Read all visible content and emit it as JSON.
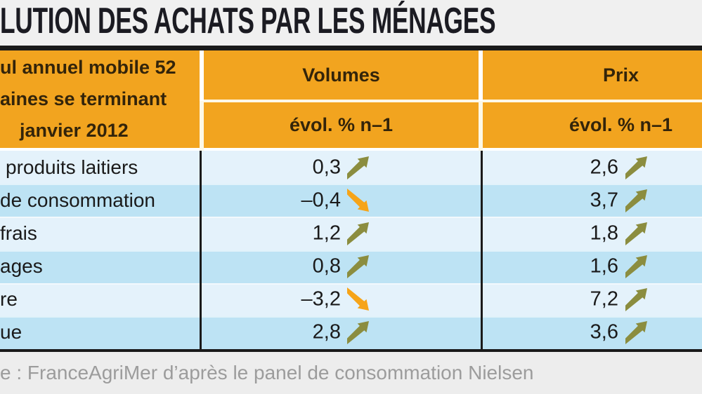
{
  "title": "LUTION DES ACHATS PAR LES MÉNAGES",
  "header": {
    "period_lines": [
      "ul annuel mobile 52",
      "aines se terminant",
      "janvier 2012"
    ],
    "volumes_label": "Volumes",
    "prix_label": "Prix",
    "volumes_sub": "évol. % n–1",
    "prix_sub": "évol. % n–1"
  },
  "table": {
    "rows": [
      {
        "label": "produits laitiers",
        "volumes": "0,3",
        "volumes_dir": "up",
        "prix": "2,6",
        "prix_dir": "up"
      },
      {
        "label": "de consommation",
        "volumes": "–0,4",
        "volumes_dir": "down",
        "prix": "3,7",
        "prix_dir": "up"
      },
      {
        "label": "frais",
        "volumes": "1,2",
        "volumes_dir": "up",
        "prix": "1,8",
        "prix_dir": "up"
      },
      {
        "label": "ages",
        "volumes": "0,8",
        "volumes_dir": "up",
        "prix": "1,6",
        "prix_dir": "up"
      },
      {
        "label": "re",
        "volumes": "–3,2",
        "volumes_dir": "down",
        "prix": "7,2",
        "prix_dir": "up"
      },
      {
        "label": "ue",
        "volumes": "2,8",
        "volumes_dir": "up",
        "prix": "3,6",
        "prix_dir": "up"
      }
    ]
  },
  "footer": {
    "source": "e : FranceAgriMer d’après le panel de consommation Nielsen"
  },
  "colors": {
    "header_orange": "#F2A41F",
    "header_text": "#33240A",
    "arrow_up": "#8B8D3F",
    "arrow_down": "#F6A418",
    "row_light": "#E4F2FB",
    "row_dark": "#BDE3F4",
    "bar_black": "#1A1A1A",
    "title_bg": "#F0F0F0",
    "title_text": "#1B1B22",
    "footer_bg": "#EDEDED",
    "footer_text": "#9C9C9C"
  },
  "chart_data": {
    "type": "table",
    "title": "LUTION DES ACHATS PAR LES MÉNAGES",
    "period": "ul annuel mobile 52 aines se terminant janvier 2012",
    "columns": [
      "Volumes évol. % n–1",
      "Prix évol. % n–1"
    ],
    "rows": [
      {
        "category": "produits laitiers",
        "volumes_evol_pct": 0.3,
        "volumes_trend": "up",
        "prix_evol_pct": 2.6,
        "prix_trend": "up"
      },
      {
        "category": "de consommation",
        "volumes_evol_pct": -0.4,
        "volumes_trend": "down",
        "prix_evol_pct": 3.7,
        "prix_trend": "up"
      },
      {
        "category": "frais",
        "volumes_evol_pct": 1.2,
        "volumes_trend": "up",
        "prix_evol_pct": 1.8,
        "prix_trend": "up"
      },
      {
        "category": "ages",
        "volumes_evol_pct": 0.8,
        "volumes_trend": "up",
        "prix_evol_pct": 1.6,
        "prix_trend": "up"
      },
      {
        "category": "re",
        "volumes_evol_pct": -3.2,
        "volumes_trend": "down",
        "prix_evol_pct": 7.2,
        "prix_trend": "up"
      },
      {
        "category": "ue",
        "volumes_evol_pct": 2.8,
        "volumes_trend": "up",
        "prix_evol_pct": 3.6,
        "prix_trend": "up"
      }
    ],
    "source": "e : FranceAgriMer d’après le panel de consommation Nielsen",
    "legend_position": "none",
    "grid": false
  }
}
